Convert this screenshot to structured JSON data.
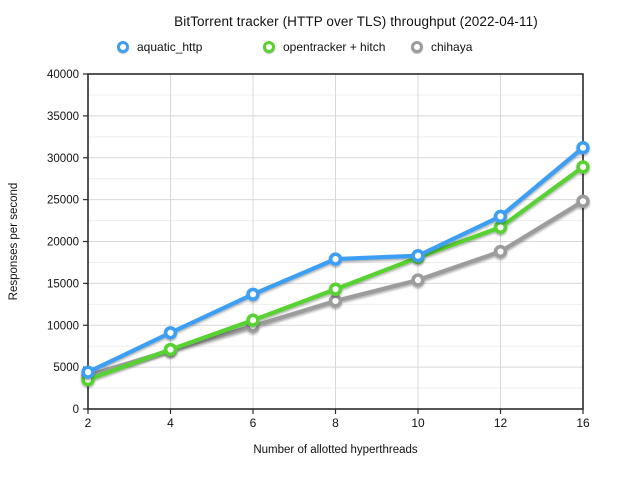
{
  "title": "BitTorrent tracker (HTTP over TLS) throughput (2022-04-11)",
  "legend": [
    {
      "label": "aquatic_http"
    },
    {
      "label": "opentracker + hitch"
    },
    {
      "label": "chihaya"
    }
  ],
  "chart_data": {
    "type": "line",
    "title": "BitTorrent tracker (HTTP over TLS) throughput (2022-04-11)",
    "xlabel": "Number of allotted hyperthreads",
    "ylabel": "Responses per second",
    "categories": [
      "2",
      "4",
      "6",
      "8",
      "10",
      "12",
      "16"
    ],
    "series": [
      {
        "name": "aquatic_http",
        "color": "#3e9ff3",
        "values": [
          4400,
          9100,
          13700,
          17900,
          18300,
          23000,
          31200
        ]
      },
      {
        "name": "opentracker + hitch",
        "color": "#59d230",
        "values": [
          3500,
          7100,
          10600,
          14300,
          18100,
          21700,
          28900
        ]
      },
      {
        "name": "chihaya",
        "color": "#9c9c9c",
        "values": [
          4000,
          7000,
          9900,
          12900,
          15400,
          18800,
          24800
        ]
      }
    ],
    "ylim": [
      0,
      40000
    ],
    "y_major": 5000,
    "y_minor": 2500,
    "grid": true,
    "legend_position": "top",
    "marker": "ring",
    "colors": {
      "grid_major": "#d8d8d8",
      "grid_minor": "#eeeeee",
      "border": "#2b2b2b",
      "text": "#111111"
    }
  }
}
